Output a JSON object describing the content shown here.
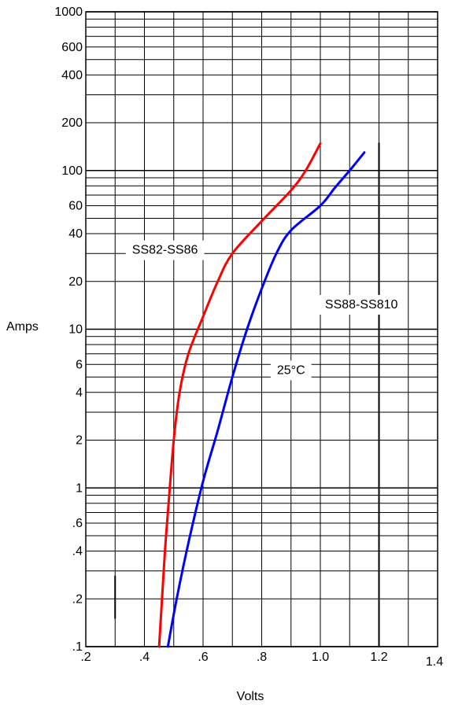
{
  "chart_data": {
    "type": "line",
    "xlabel": "Volts",
    "ylabel": "Amps",
    "xlim": [
      0.2,
      1.4
    ],
    "ylim": [
      0.1,
      1000
    ],
    "y_scale": "log",
    "grid": true,
    "x_ticks": [
      {
        "value": 0.2,
        "label": ".2"
      },
      {
        "value": 0.4,
        "label": ".4"
      },
      {
        "value": 0.6,
        "label": ".6"
      },
      {
        "value": 0.8,
        "label": ".8"
      },
      {
        "value": 1.0,
        "label": "1.0"
      },
      {
        "value": 1.2,
        "label": "1.2"
      },
      {
        "value": 1.4,
        "label": "1.4"
      }
    ],
    "y_ticks": [
      {
        "value": 0.1,
        "label": ".1"
      },
      {
        "value": 0.2,
        "label": ".2"
      },
      {
        "value": 0.4,
        "label": ".4"
      },
      {
        "value": 0.6,
        "label": ".6"
      },
      {
        "value": 1,
        "label": "1"
      },
      {
        "value": 2,
        "label": "2"
      },
      {
        "value": 4,
        "label": "4"
      },
      {
        "value": 6,
        "label": "6"
      },
      {
        "value": 10,
        "label": "10"
      },
      {
        "value": 20,
        "label": "20"
      },
      {
        "value": 40,
        "label": "40"
      },
      {
        "value": 60,
        "label": "60"
      },
      {
        "value": 100,
        "label": "100"
      },
      {
        "value": 200,
        "label": "200"
      },
      {
        "value": 400,
        "label": "400"
      },
      {
        "value": 600,
        "label": "600"
      },
      {
        "value": 1000,
        "label": "1000"
      }
    ],
    "series": [
      {
        "name": "SS82-SS86",
        "color": "#ff0000",
        "points": [
          {
            "x": 0.45,
            "y": 0.1
          },
          {
            "x": 0.46,
            "y": 0.2
          },
          {
            "x": 0.47,
            "y": 0.4
          },
          {
            "x": 0.48,
            "y": 0.7
          },
          {
            "x": 0.5,
            "y": 2
          },
          {
            "x": 0.52,
            "y": 4
          },
          {
            "x": 0.55,
            "y": 7
          },
          {
            "x": 0.6,
            "y": 12
          },
          {
            "x": 0.65,
            "y": 20
          },
          {
            "x": 0.7,
            "y": 30
          },
          {
            "x": 0.8,
            "y": 48
          },
          {
            "x": 0.9,
            "y": 75
          },
          {
            "x": 0.95,
            "y": 100
          },
          {
            "x": 1.0,
            "y": 148
          }
        ]
      },
      {
        "name": "SS88-SS810",
        "color": "#0000ff",
        "points": [
          {
            "x": 0.48,
            "y": 0.1
          },
          {
            "x": 0.51,
            "y": 0.2
          },
          {
            "x": 0.55,
            "y": 0.45
          },
          {
            "x": 0.6,
            "y": 1.1
          },
          {
            "x": 0.65,
            "y": 2.3
          },
          {
            "x": 0.7,
            "y": 5
          },
          {
            "x": 0.75,
            "y": 10
          },
          {
            "x": 0.8,
            "y": 18
          },
          {
            "x": 0.85,
            "y": 30
          },
          {
            "x": 0.9,
            "y": 42
          },
          {
            "x": 1.0,
            "y": 60
          },
          {
            "x": 1.05,
            "y": 78
          },
          {
            "x": 1.1,
            "y": 100
          },
          {
            "x": 1.15,
            "y": 130
          }
        ]
      }
    ],
    "annotations": [
      {
        "text": "SS82-SS86",
        "x": 0.47,
        "y": 32
      },
      {
        "text": "SS88-SS810",
        "x": 1.14,
        "y": 14.5
      },
      {
        "text": "25°C",
        "x": 0.9,
        "y": 5.6
      }
    ]
  }
}
